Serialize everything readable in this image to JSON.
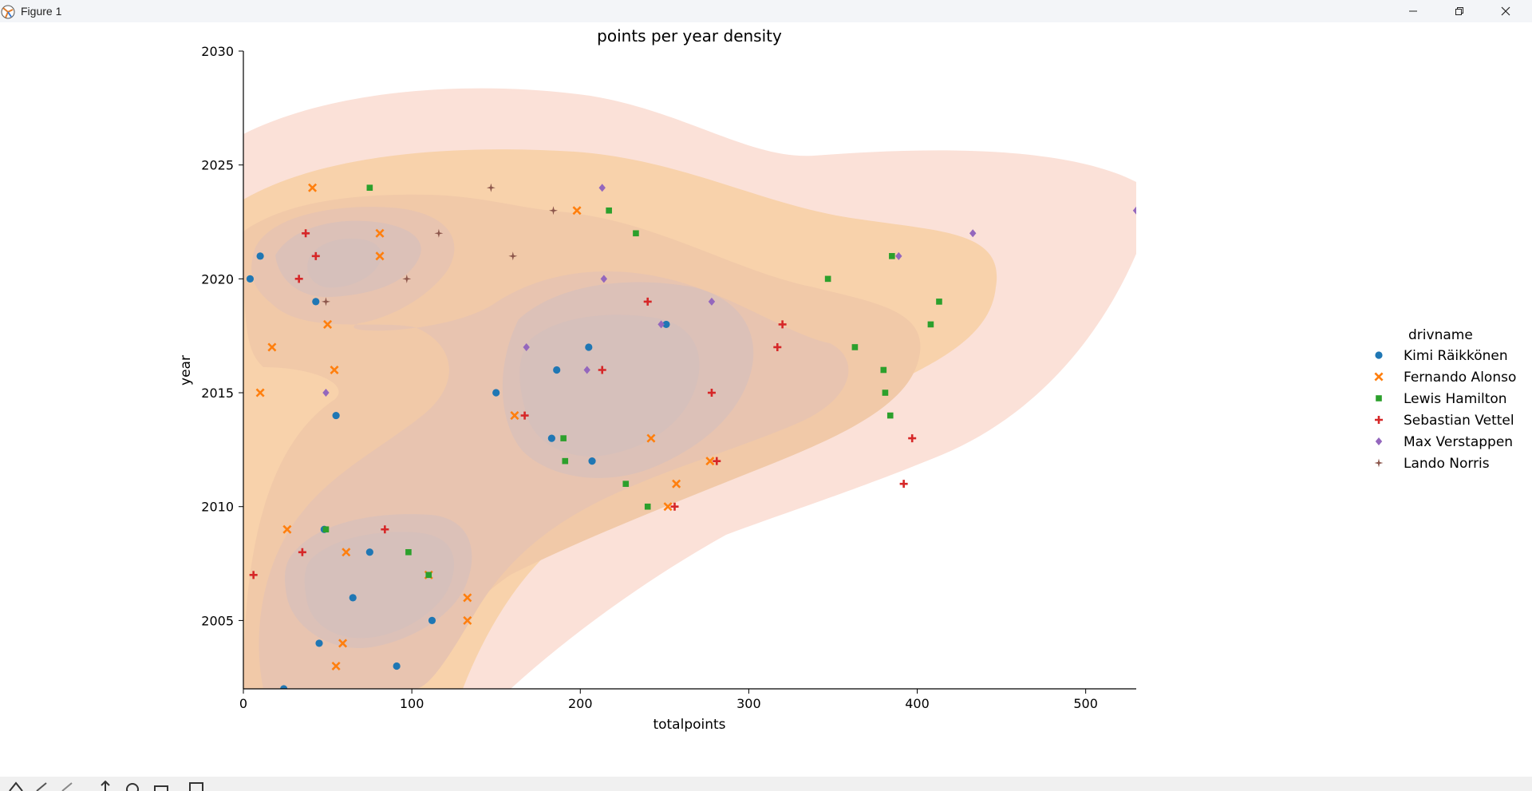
{
  "window": {
    "title": "Figure 1"
  },
  "toolbar": {
    "buttons": [
      "home-icon",
      "back-icon",
      "forward-icon",
      "pan-icon",
      "zoom-icon",
      "configure-icon",
      "save-icon"
    ]
  },
  "chart_data": {
    "type": "scatter",
    "title": "points per year density",
    "xlabel": "totalpoints",
    "ylabel": "year",
    "xlim": [
      0,
      530
    ],
    "ylim": [
      2002,
      2030
    ],
    "xticks": [
      0,
      100,
      200,
      300,
      400,
      500
    ],
    "yticks": [
      2005,
      2010,
      2015,
      2020,
      2025,
      2030
    ],
    "grid": false,
    "legend": {
      "title": "drivname",
      "placement": "center-right"
    },
    "density_colors": [
      "#fbe1d8",
      "#f8d2ab",
      "#f1c9a8",
      "#e8c4b0",
      "#dcc1b8",
      "#d6c0bb"
    ],
    "series": [
      {
        "name": "Kimi Räikkönen",
        "marker": "circle",
        "color": "#1f77b4",
        "points": [
          [
            4,
            2020
          ],
          [
            10,
            2021
          ],
          [
            43,
            2019
          ],
          [
            55,
            2014
          ],
          [
            48,
            2009
          ],
          [
            75,
            2008
          ],
          [
            65,
            2006
          ],
          [
            45,
            2004
          ],
          [
            24,
            2002
          ],
          [
            91,
            2003
          ],
          [
            112,
            2005
          ],
          [
            150,
            2015
          ],
          [
            186,
            2016
          ],
          [
            205,
            2017
          ],
          [
            183,
            2013
          ],
          [
            207,
            2012
          ],
          [
            251,
            2018
          ]
        ]
      },
      {
        "name": "Fernando Alonso",
        "marker": "x",
        "color": "#ff7f0e",
        "points": [
          [
            41,
            2024
          ],
          [
            81,
            2022
          ],
          [
            81,
            2021
          ],
          [
            50,
            2018
          ],
          [
            17,
            2017
          ],
          [
            54,
            2016
          ],
          [
            10,
            2015
          ],
          [
            26,
            2009
          ],
          [
            61,
            2008
          ],
          [
            110,
            2007
          ],
          [
            133,
            2006
          ],
          [
            133,
            2005
          ],
          [
            59,
            2004
          ],
          [
            55,
            2003
          ],
          [
            161,
            2014
          ],
          [
            198,
            2023
          ],
          [
            242,
            2013
          ],
          [
            277,
            2012
          ],
          [
            257,
            2011
          ],
          [
            252,
            2010
          ]
        ]
      },
      {
        "name": "Lewis Hamilton",
        "marker": "square",
        "color": "#2ca02c",
        "points": [
          [
            75,
            2024
          ],
          [
            217,
            2023
          ],
          [
            233,
            2022
          ],
          [
            49,
            2009
          ],
          [
            98,
            2008
          ],
          [
            110,
            2007
          ],
          [
            190,
            2013
          ],
          [
            191,
            2012
          ],
          [
            227,
            2011
          ],
          [
            240,
            2010
          ],
          [
            347,
            2020
          ],
          [
            363,
            2017
          ],
          [
            380,
            2016
          ],
          [
            381,
            2015
          ],
          [
            384,
            2014
          ],
          [
            385,
            2021
          ],
          [
            408,
            2018
          ],
          [
            413,
            2019
          ]
        ]
      },
      {
        "name": "Sebastian Vettel",
        "marker": "plus",
        "color": "#d62728",
        "points": [
          [
            37,
            2022
          ],
          [
            43,
            2021
          ],
          [
            33,
            2020
          ],
          [
            35,
            2008
          ],
          [
            84,
            2009
          ],
          [
            6,
            2007
          ],
          [
            167,
            2014
          ],
          [
            213,
            2016
          ],
          [
            256,
            2010
          ],
          [
            278,
            2015
          ],
          [
            281,
            2012
          ],
          [
            240,
            2019
          ],
          [
            317,
            2017
          ],
          [
            320,
            2018
          ],
          [
            392,
            2011
          ],
          [
            397,
            2013
          ]
        ]
      },
      {
        "name": "Max Verstappen",
        "marker": "diamond",
        "color": "#9467bd",
        "points": [
          [
            213,
            2024
          ],
          [
            214,
            2020
          ],
          [
            168,
            2017
          ],
          [
            204,
            2016
          ],
          [
            49,
            2015
          ],
          [
            248,
            2018
          ],
          [
            278,
            2019
          ],
          [
            389,
            2021
          ],
          [
            433,
            2022
          ],
          [
            530,
            2023
          ]
        ]
      },
      {
        "name": "Lando Norris",
        "marker": "star",
        "color": "#8c564b",
        "points": [
          [
            147,
            2024
          ],
          [
            184,
            2023
          ],
          [
            116,
            2022
          ],
          [
            160,
            2021
          ],
          [
            97,
            2020
          ],
          [
            49,
            2019
          ]
        ]
      }
    ]
  }
}
